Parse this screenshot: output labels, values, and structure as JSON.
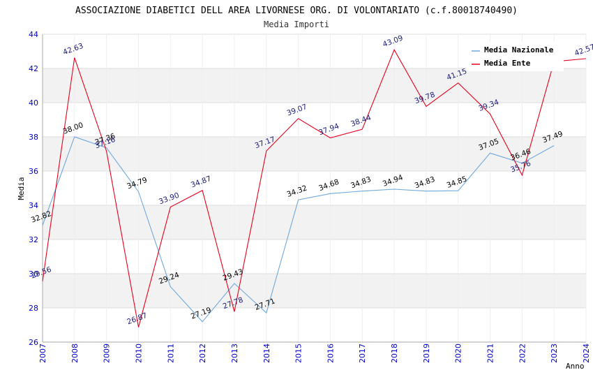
{
  "colors": {
    "nazionale": "#6fa8dc",
    "ente": "#e8001c",
    "tick": "#0000cc",
    "ente_label": "#1a1a7a",
    "nazionale_label": "#000000",
    "band": "#f2f2f2",
    "grid": "#dddddd"
  },
  "chart_data": {
    "type": "line",
    "title": "ASSOCIAZIONE DIABETICI DELL AREA LIVORNESE ORG. DI VOLONTARIATO (c.f.80018740490)",
    "subtitle": "Media Importi",
    "xlabel": "Anno",
    "ylabel": "Media",
    "categories": [
      "2007",
      "2008",
      "2009",
      "2010",
      "2011",
      "2012",
      "2013",
      "2014",
      "2015",
      "2016",
      "2017",
      "2018",
      "2019",
      "2020",
      "2021",
      "2022",
      "2023",
      "2024"
    ],
    "ylim": [
      26,
      44
    ],
    "yticks": [
      26,
      28,
      30,
      32,
      34,
      36,
      38,
      40,
      42,
      44
    ],
    "ytick_labels": [
      "26",
      "28",
      "30",
      "32",
      "34",
      "36",
      "38",
      "40",
      "42",
      "44"
    ],
    "legend_position": "top-right",
    "series": [
      {
        "key": "nazionale",
        "name": "Media Nazionale",
        "values": [
          32.82,
          38.0,
          37.36,
          34.79,
          29.24,
          27.19,
          29.43,
          27.71,
          34.32,
          34.68,
          34.83,
          34.94,
          34.83,
          34.85,
          37.05,
          36.46,
          37.49,
          null
        ],
        "labels": [
          "32.82",
          "38.00",
          "37.36",
          "34.79",
          "29.24",
          "27.19",
          "29.43",
          "27.71",
          "34.32",
          "34.68",
          "34.83",
          "34.94",
          "34.83",
          "34.85",
          "37.05",
          "36.46",
          "37.49",
          null
        ]
      },
      {
        "key": "ente",
        "name": "Media Ente",
        "values": [
          29.56,
          42.63,
          37.16,
          26.87,
          33.9,
          34.87,
          27.78,
          37.17,
          39.07,
          37.94,
          38.44,
          43.09,
          39.78,
          41.15,
          39.34,
          35.76,
          42.4,
          42.57
        ],
        "labels": [
          "29.56",
          "42.63",
          "37.16",
          "26.87",
          "33.90",
          "34.87",
          "27.78",
          "37.17",
          "39.07",
          "37.94",
          "38.44",
          "43.09",
          "39.78",
          "41.15",
          "39.34",
          "35.76",
          null,
          "42.57"
        ]
      }
    ]
  }
}
